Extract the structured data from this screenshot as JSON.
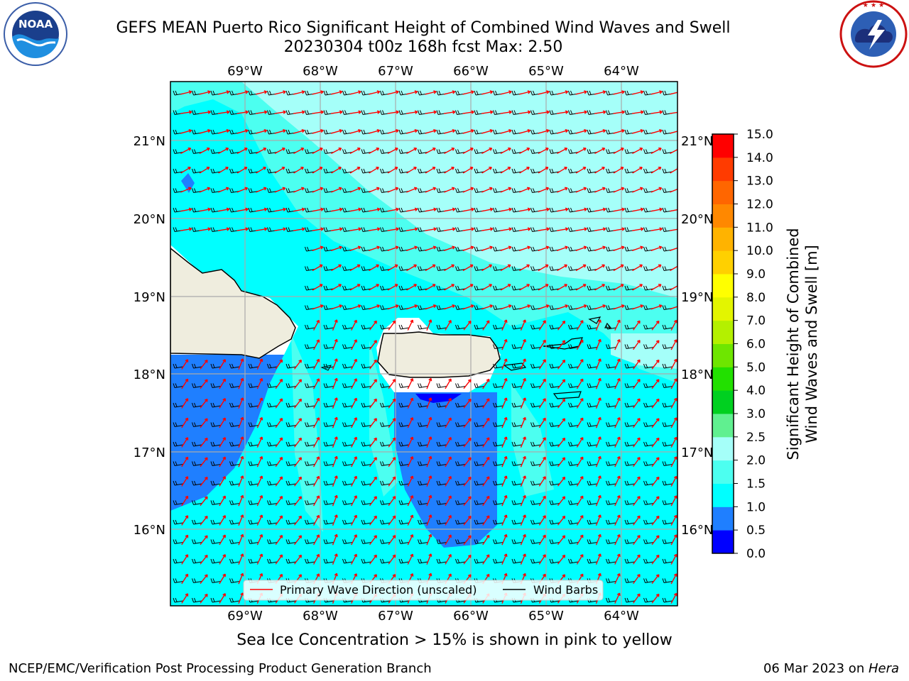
{
  "header": {
    "title_line1": "GEFS MEAN Puerto Rico Significant Height of Combined Wind Waves and Swell",
    "title_line2": "20230304 t00z 168h fcst   Max: 2.50"
  },
  "logos": {
    "left": {
      "name": "noaa-logo",
      "text": "NOAA",
      "ring_text": "NATIONAL OCEANIC AND ATMOSPHERIC ADMINISTRATION · U.S. DEPARTMENT OF COMMERCE"
    },
    "right": {
      "name": "nws-logo",
      "ring_text": "NATIONAL WEATHER SERVICE"
    }
  },
  "map": {
    "lon_ticks": [
      "69°W",
      "68°W",
      "67°W",
      "66°W",
      "65°W",
      "64°W"
    ],
    "lat_ticks": [
      "21°N",
      "20°N",
      "19°N",
      "18°N",
      "17°N",
      "16°N"
    ],
    "legend": {
      "wave_label": "Primary Wave Direction (unscaled)",
      "barb_label": "Wind Barbs",
      "wave_color": "#ff0000",
      "barb_color": "#000000"
    },
    "land_color": "#efedde",
    "sea_color": "#00ffff"
  },
  "colorbar": {
    "label_line1": "Significant Height of Combined",
    "label_line2": "Wind Waves and Swell [m]",
    "ticks": [
      "0.0",
      "0.5",
      "1.0",
      "1.5",
      "2.0",
      "2.5",
      "3.0",
      "4.0",
      "5.0",
      "6.0",
      "7.0",
      "8.0",
      "9.0",
      "10.0",
      "11.0",
      "12.0",
      "13.0",
      "14.0",
      "15.0"
    ],
    "colors": [
      "#0000ff",
      "#1f7fff",
      "#00ffff",
      "#4cfff0",
      "#a5fff9",
      "#60f090",
      "#00d020",
      "#22e000",
      "#6ee600",
      "#b4f000",
      "#e3f500",
      "#ffff00",
      "#ffd000",
      "#ffb300",
      "#ff8800",
      "#ff6600",
      "#ff3b00",
      "#ff0000"
    ]
  },
  "caption": "Sea Ice Concentration > 15% is shown in pink to yellow",
  "footer": {
    "left": "NCEP/EMC/Verification Post Processing Product Generation Branch",
    "right_prefix": "06 Mar 2023 on ",
    "right_machine": "Hera"
  }
}
